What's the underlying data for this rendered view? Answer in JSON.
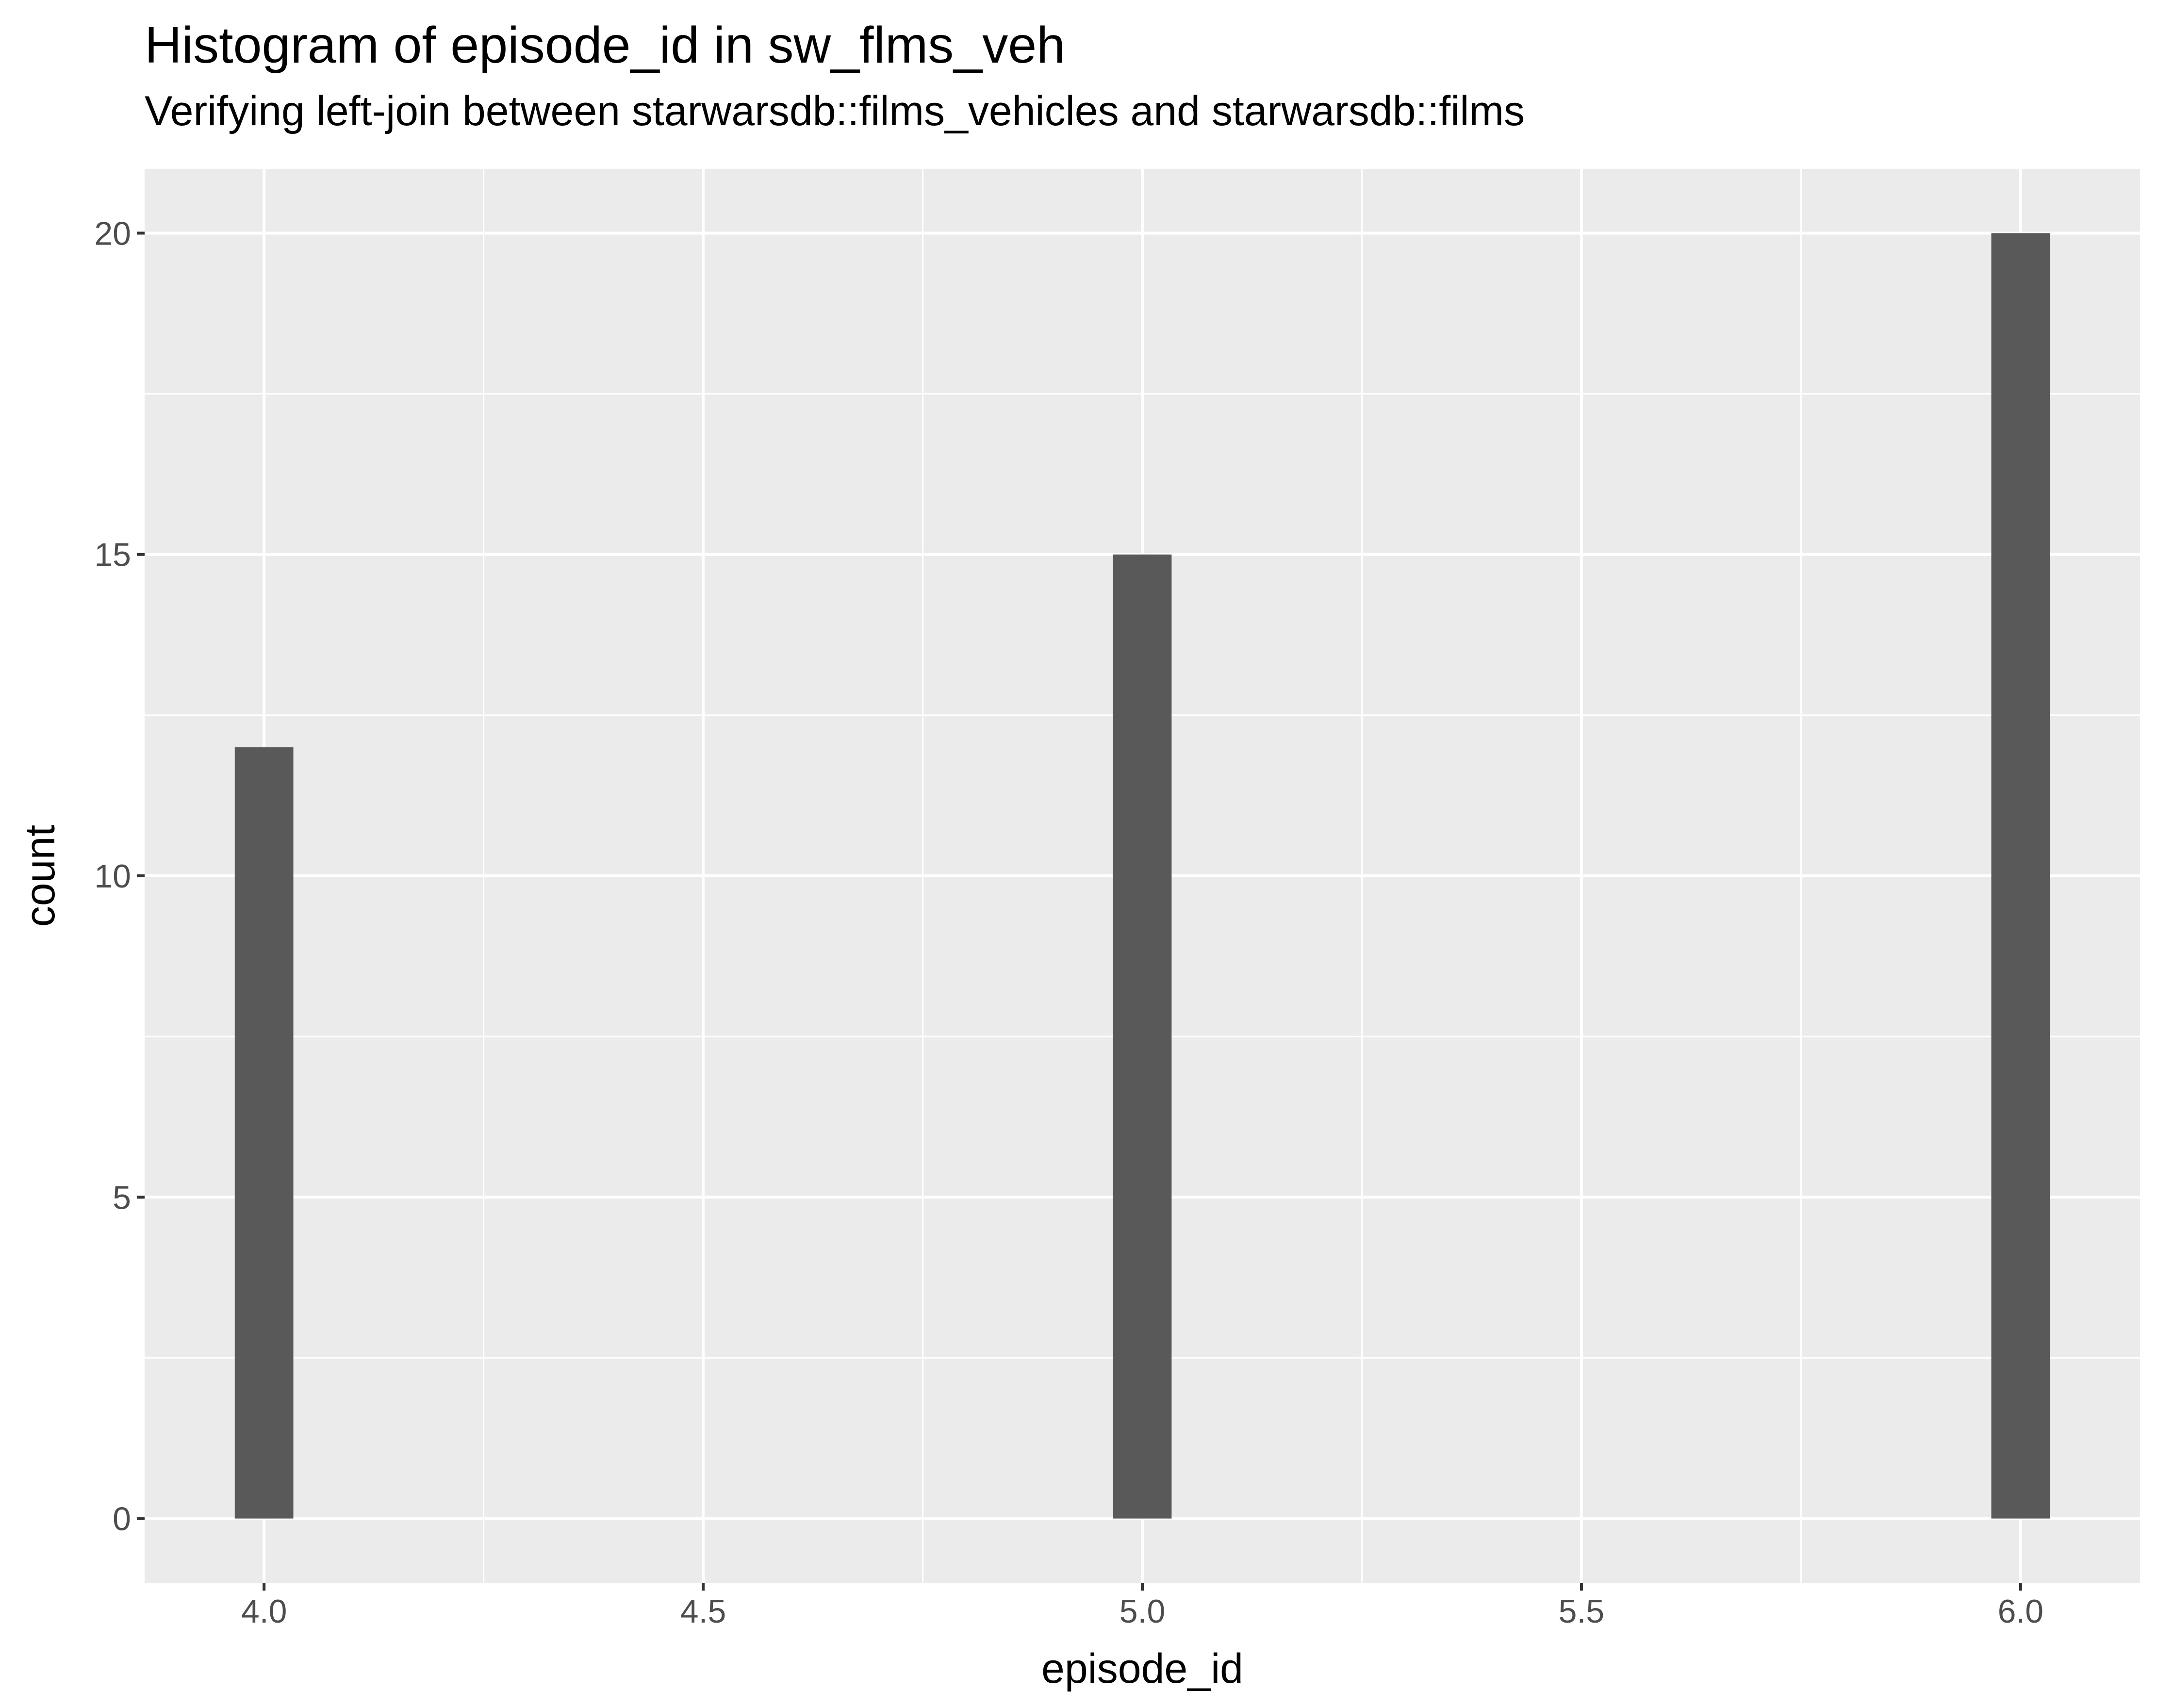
{
  "chart_data": {
    "type": "bar",
    "title": "Histogram of episode_id in sw_flms_veh",
    "subtitle": "Verifying left-join between starwarsdb::films_vehicles and starwarsdb::films",
    "xlabel": "episode_id",
    "ylabel": "count",
    "x": [
      4.0,
      5.0,
      6.0
    ],
    "values": [
      12,
      15,
      20
    ],
    "bin_width": 0.0667,
    "xlim": [
      3.864,
      6.136
    ],
    "ylim": [
      -1,
      21
    ],
    "xticks": [
      4.0,
      4.5,
      5.0,
      5.5,
      6.0
    ],
    "xtick_labels": [
      "4.0",
      "4.5",
      "5.0",
      "5.5",
      "6.0"
    ],
    "yticks": [
      0,
      5,
      10,
      15,
      20
    ],
    "ytick_labels": [
      "0",
      "5",
      "10",
      "15",
      "20"
    ],
    "grid": true,
    "legend": "none",
    "colors": {
      "panel": "#ebebeb",
      "bar": "#595959",
      "grid": "#ffffff"
    }
  }
}
